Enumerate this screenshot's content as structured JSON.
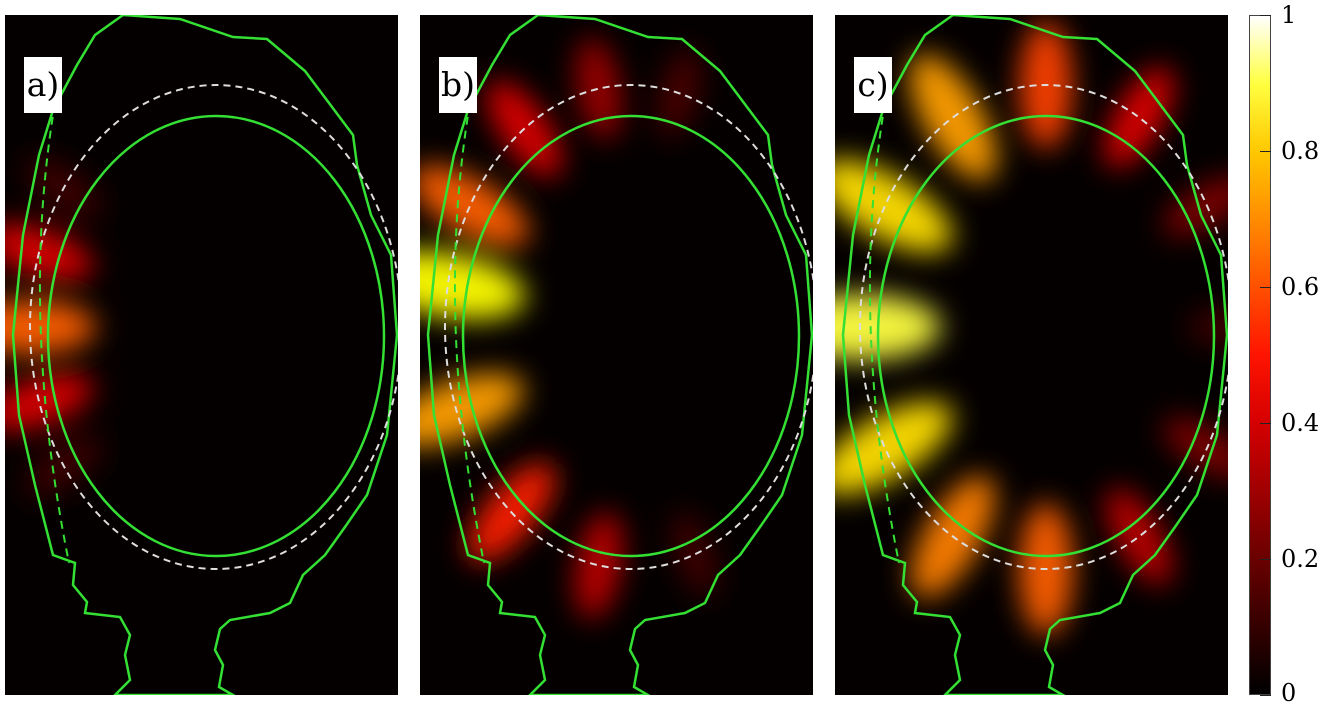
{
  "chart_data": [
    {
      "type": "heatmap",
      "panel_label": "a)",
      "intensity": [
        {
          "angle": 180,
          "value": 0.55
        },
        {
          "angle": 162,
          "value": 0.35
        },
        {
          "angle": 198,
          "value": 0.35
        },
        {
          "angle": 145,
          "value": 0.1
        },
        {
          "angle": 215,
          "value": 0.1
        }
      ]
    },
    {
      "type": "heatmap",
      "panel_label": "b)",
      "intensity": [
        {
          "angle": 170,
          "value": 0.8
        },
        {
          "angle": 150,
          "value": 0.55
        },
        {
          "angle": 200,
          "value": 0.65
        },
        {
          "angle": 125,
          "value": 0.35
        },
        {
          "angle": 230,
          "value": 0.45
        },
        {
          "angle": 100,
          "value": 0.25
        },
        {
          "angle": 260,
          "value": 0.3
        },
        {
          "angle": 75,
          "value": 0.12
        },
        {
          "angle": 290,
          "value": 0.1
        }
      ]
    },
    {
      "type": "heatmap",
      "panel_label": "c)",
      "intensity": [
        {
          "angle": 180,
          "value": 0.85
        },
        {
          "angle": 150,
          "value": 0.75
        },
        {
          "angle": 210,
          "value": 0.75
        },
        {
          "angle": 120,
          "value": 0.65
        },
        {
          "angle": 240,
          "value": 0.6
        },
        {
          "angle": 90,
          "value": 0.5
        },
        {
          "angle": 270,
          "value": 0.55
        },
        {
          "angle": 60,
          "value": 0.35
        },
        {
          "angle": 300,
          "value": 0.3
        },
        {
          "angle": 30,
          "value": 0.2
        },
        {
          "angle": 330,
          "value": 0.2
        },
        {
          "angle": 0,
          "value": 0.1
        }
      ]
    }
  ],
  "colorbar": {
    "range": [
      0,
      1
    ],
    "ticks": [
      "0",
      "0.2",
      "0.4",
      "0.6",
      "0.8",
      "1"
    ],
    "colormap": "hot"
  },
  "colors": {
    "boundary": "#33e033",
    "separatrix": "#dddddd",
    "background": "#050000"
  }
}
